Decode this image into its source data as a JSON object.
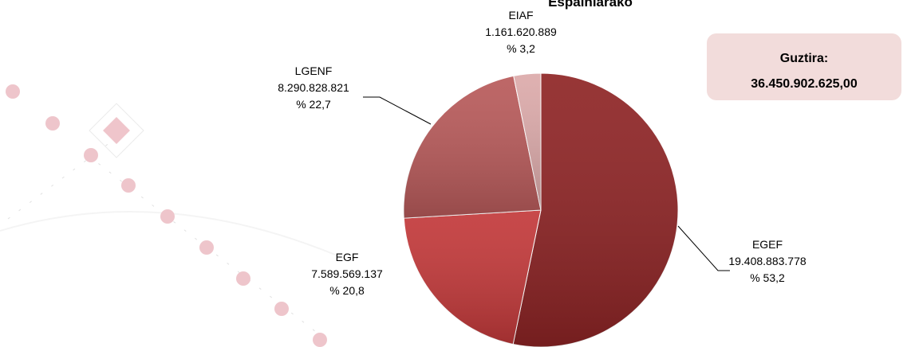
{
  "chart_data": {
    "type": "pie",
    "title": "Espainiarako",
    "categories": [
      "EGEF",
      "EGF",
      "LGENF",
      "EIAF"
    ],
    "values": [
      19408883778,
      7589569137,
      8290828821,
      1161620889
    ],
    "value_labels": [
      "19.408.883.778",
      "7.589.569.137",
      "8.290.828.821",
      "1.161.620.889"
    ],
    "percent_labels": [
      "% 53,2",
      "% 20,8",
      "% 22,7",
      "% 3,2"
    ],
    "colors": [
      "#8e2425",
      "#c3393a",
      "#b85a5a",
      "#dcaaaa"
    ],
    "total": {
      "label": "Guztira:",
      "value": "36.450.902.625,00"
    }
  }
}
